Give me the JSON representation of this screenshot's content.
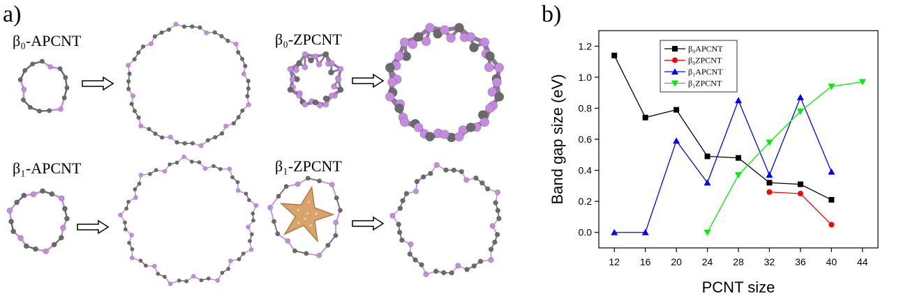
{
  "panel_a": {
    "label": "a)",
    "structures": [
      {
        "label": "β₀-APCNT"
      },
      {
        "label": "β₀-ZPCNT"
      },
      {
        "label": "β₁-APCNT"
      },
      {
        "label": "β₁-ZPCNT"
      }
    ],
    "colors": {
      "phosphorus": "#c58be0",
      "carbon": "#6a6a6a",
      "starfish": "#d9a46b"
    }
  },
  "panel_b": {
    "label": "b)"
  },
  "chart_data": {
    "type": "line",
    "xlabel": "PCNT size",
    "ylabel": "Band gap size (eV)",
    "x_ticks": [
      12,
      16,
      20,
      24,
      28,
      32,
      36,
      40,
      44
    ],
    "y_ticks": [
      "0.0",
      "0.2",
      "0.4",
      "0.6",
      "0.8",
      "1.0",
      "1.2"
    ],
    "xlim": [
      10,
      46
    ],
    "ylim": [
      -0.1,
      1.3
    ],
    "grid": false,
    "legend_position": "top-left",
    "series": [
      {
        "name": "β₀APCNT",
        "color": "#000000",
        "marker": "square",
        "x": [
          12,
          16,
          20,
          24,
          28,
          32,
          36,
          40
        ],
        "y": [
          1.14,
          0.74,
          0.79,
          0.49,
          0.48,
          0.32,
          0.31,
          0.21
        ]
      },
      {
        "name": "β₀ZPCNT",
        "color": "#ff0000",
        "marker": "circle",
        "x": [
          32,
          36,
          40
        ],
        "y": [
          0.26,
          0.25,
          0.05
        ]
      },
      {
        "name": "β₁APCNT",
        "color": "#0000ff",
        "marker": "triangle-up",
        "x": [
          12,
          16,
          20,
          24,
          28,
          32,
          36,
          40
        ],
        "y": [
          0.0,
          0.0,
          0.59,
          0.32,
          0.85,
          0.37,
          0.87,
          0.39
        ]
      },
      {
        "name": "β₁ZPCNT",
        "color": "#00ee00",
        "marker": "triangle-down",
        "x": [
          24,
          28,
          32,
          36,
          40,
          44
        ],
        "y": [
          0.0,
          0.37,
          0.58,
          0.78,
          0.94,
          0.97
        ]
      }
    ]
  }
}
